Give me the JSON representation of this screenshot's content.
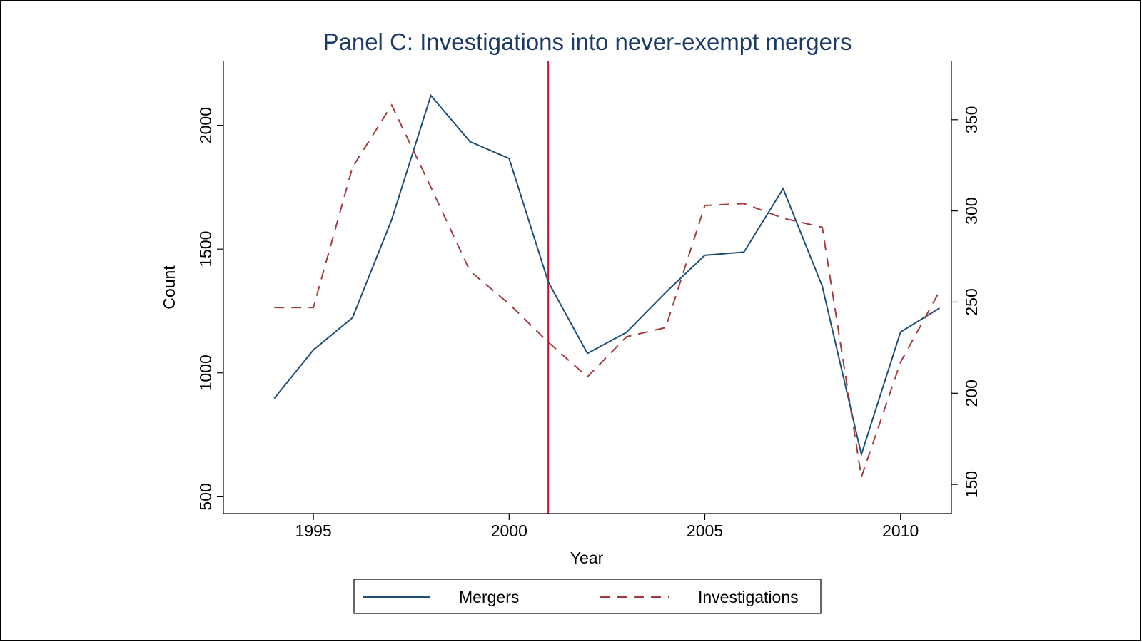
{
  "chart_data": {
    "type": "line",
    "title": "Panel C: Investigations into never-exempt mergers",
    "xlabel": "Year",
    "ylabel_left": "Count",
    "ylabel_right": "",
    "xlim": [
      1992.7,
      2011.3
    ],
    "ylim_left": [
      432,
      2258
    ],
    "ylim_right": [
      134,
      382
    ],
    "x_ticks": [
      1995,
      2000,
      2005,
      2010
    ],
    "y_left_ticks": [
      500,
      1000,
      1500,
      2000
    ],
    "y_right_ticks": [
      150,
      200,
      250,
      300,
      350
    ],
    "reference_line": {
      "x": 2001,
      "color": "#c8102e"
    },
    "x": [
      1994,
      1995,
      1996,
      1997,
      1998,
      1999,
      2000,
      2001,
      2002,
      2003,
      2004,
      2005,
      2006,
      2007,
      2008,
      2009,
      2010,
      2011
    ],
    "series": [
      {
        "name": "Mergers",
        "axis": "left",
        "color": "#1f4e79",
        "dash": "solid",
        "values": [
          897,
          1093,
          1223,
          1619,
          2120,
          1934,
          1866,
          1367,
          1079,
          1164,
          1325,
          1475,
          1488,
          1744,
          1350,
          671,
          1165,
          1262
        ]
      },
      {
        "name": "Investigations",
        "axis": "right",
        "color": "#a43a3f",
        "dash": "dashed",
        "values": [
          247,
          247,
          324,
          358,
          313,
          267,
          249,
          228,
          209,
          231,
          236,
          303,
          304,
          296,
          291,
          154,
          217,
          256
        ]
      }
    ],
    "legend": {
      "position": "bottom-center",
      "entries": [
        "Mergers",
        "Investigations"
      ]
    }
  }
}
